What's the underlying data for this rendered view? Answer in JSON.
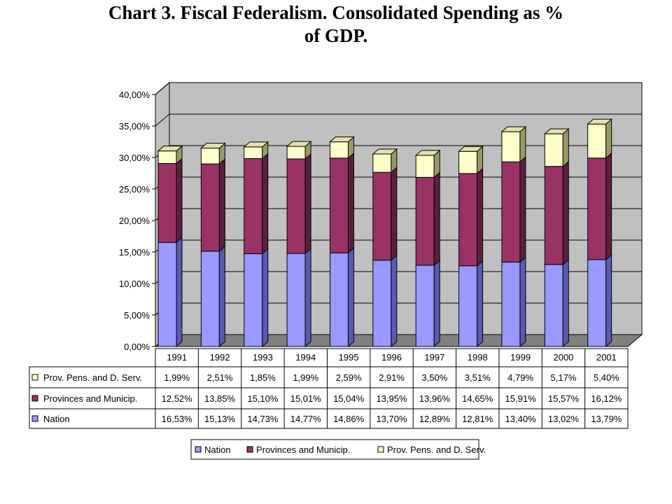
{
  "chart_data": {
    "type": "bar",
    "stacked": true,
    "three_d": true,
    "title_line1": "Chart 3. Fiscal Federalism. Consolidated Spending as %",
    "title_line2": "of GDP.",
    "categories": [
      "1991",
      "1992",
      "1993",
      "1994",
      "1995",
      "1996",
      "1997",
      "1998",
      "1999",
      "2000",
      "2001"
    ],
    "ylim": [
      0,
      40
    ],
    "y_ticks": [
      "0,00%",
      "5,00%",
      "10,00%",
      "15,00%",
      "20,00%",
      "25,00%",
      "30,00%",
      "35,00%",
      "40,00%"
    ],
    "grid": true,
    "series": [
      {
        "name": "Nation",
        "color": "#9999ff",
        "side": "#5a5ab0",
        "top": "#c6c6ff",
        "values": [
          16.53,
          15.13,
          14.73,
          14.77,
          14.86,
          13.7,
          12.89,
          12.81,
          13.4,
          13.02,
          13.79
        ],
        "labels": [
          "16,53%",
          "15,13%",
          "14,73%",
          "14,77%",
          "14,86%",
          "13,70%",
          "12,89%",
          "12,81%",
          "13,40%",
          "13,02%",
          "13,79%"
        ]
      },
      {
        "name": "Provinces and Municip.",
        "color": "#993366",
        "side": "#5c1f3d",
        "top": "#b8668f",
        "values": [
          12.52,
          13.85,
          15.1,
          15.01,
          15.04,
          13.95,
          13.96,
          14.65,
          15.91,
          15.57,
          16.12
        ],
        "labels": [
          "12,52%",
          "13,85%",
          "15,10%",
          "15,01%",
          "15,04%",
          "13,95%",
          "13,96%",
          "14,65%",
          "15,91%",
          "15,57%",
          "16,12%"
        ]
      },
      {
        "name": "Prov. Pens. and D. Serv.",
        "color": "#ffffcc",
        "side": "#999966",
        "top": "#e0e0b0",
        "values": [
          1.99,
          2.51,
          1.85,
          1.99,
          2.59,
          2.91,
          3.5,
          3.51,
          4.79,
          5.17,
          5.4
        ],
        "labels": [
          "1,99%",
          "2,51%",
          "1,85%",
          "1,99%",
          "2,59%",
          "2,91%",
          "3,50%",
          "3,51%",
          "4,79%",
          "5,17%",
          "5,40%"
        ]
      }
    ],
    "legend_position": "bottom"
  },
  "colors": {
    "plot_wall": "#c0c0c0",
    "floor": "#808080",
    "grid": "#000000"
  }
}
